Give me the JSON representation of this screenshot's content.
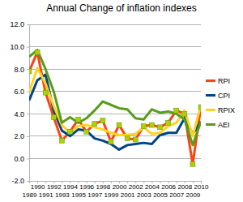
{
  "chart_data": {
    "type": "line",
    "title": "Annual Change of inflation indexes",
    "x": [
      1989,
      1990,
      1991,
      1992,
      1993,
      1994,
      1995,
      1996,
      1997,
      1998,
      1999,
      2000,
      2001,
      2002,
      2003,
      2004,
      2005,
      2006,
      2007,
      2008,
      2009,
      2010
    ],
    "series": [
      {
        "name": "RPI",
        "color": "#ff420e",
        "marker": "square",
        "values": [
          7.8,
          9.5,
          5.9,
          3.7,
          1.6,
          2.4,
          3.5,
          2.4,
          3.1,
          3.4,
          1.5,
          3.0,
          1.8,
          1.7,
          2.9,
          3.0,
          2.8,
          3.2,
          4.3,
          4.0,
          -0.5,
          4.6
        ]
      },
      {
        "name": "CPI",
        "color": "#004586",
        "marker": "none",
        "values": [
          5.2,
          7.0,
          7.5,
          4.3,
          2.5,
          2.0,
          2.6,
          2.5,
          1.8,
          1.6,
          1.3,
          0.8,
          1.2,
          1.3,
          1.4,
          1.3,
          2.1,
          2.3,
          2.3,
          3.6,
          2.2,
          3.3
        ]
      },
      {
        "name": "RPIX",
        "color": "#ffd320",
        "marker": "none",
        "values": [
          5.9,
          8.1,
          6.7,
          4.7,
          3.0,
          2.3,
          2.9,
          3.0,
          2.8,
          2.6,
          2.3,
          2.1,
          2.1,
          2.2,
          2.8,
          2.2,
          2.3,
          2.9,
          3.2,
          4.3,
          2.0,
          4.8
        ]
      },
      {
        "name": "AEI",
        "color": "#579d1c",
        "marker": "none",
        "values": [
          9.1,
          9.7,
          8.0,
          6.0,
          3.2,
          3.7,
          3.2,
          3.6,
          4.3,
          5.1,
          4.8,
          4.5,
          4.4,
          3.6,
          3.5,
          4.4,
          4.1,
          4.2,
          4.0,
          3.5,
          1.2,
          3.3
        ]
      }
    ],
    "xlim": [
      1989,
      2010
    ],
    "xticks": [
      1989,
      1990,
      1991,
      1992,
      1993,
      1994,
      1995,
      1996,
      1997,
      1998,
      1999,
      2000,
      2001,
      2002,
      2003,
      2004,
      2005,
      2006,
      2007,
      2008,
      2009,
      2010
    ],
    "ylim": [
      -2,
      12
    ],
    "yticks": [
      {
        "value": -2,
        "label": "-2.0"
      },
      {
        "value": 0,
        "label": "0.0"
      },
      {
        "value": 2,
        "label": "2.0"
      },
      {
        "value": 4,
        "label": "4.0"
      },
      {
        "value": 6,
        "label": "6.0"
      },
      {
        "value": 8,
        "label": "8.0"
      },
      {
        "value": 10,
        "label": "10.0"
      },
      {
        "value": 12,
        "label": "12.0"
      }
    ],
    "grid": true,
    "legend": "right"
  }
}
